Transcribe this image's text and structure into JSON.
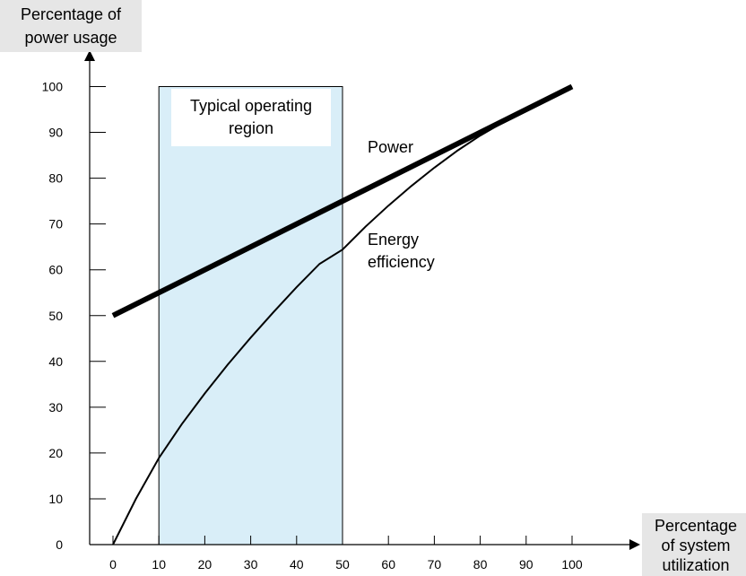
{
  "chart_data": {
    "type": "line",
    "ylabel": [
      "Percentage of",
      "power usage"
    ],
    "xlabel": [
      "Percentage",
      "of system",
      "utilization"
    ],
    "xlim": [
      0,
      100
    ],
    "ylim": [
      0,
      100
    ],
    "xticks": [
      "0",
      "10",
      "20",
      "30",
      "40",
      "50",
      "60",
      "70",
      "80",
      "90",
      "100"
    ],
    "yticks": [
      "0",
      "10",
      "20",
      "30",
      "40",
      "50",
      "60",
      "70",
      "80",
      "90",
      "100"
    ],
    "region": {
      "label": [
        "Typical operating",
        "region"
      ],
      "x_start": 10,
      "x_end": 50,
      "color": "#d9eef8"
    },
    "series": [
      {
        "name": "Power",
        "x": [
          0,
          100
        ],
        "y": [
          50,
          100
        ]
      },
      {
        "name": "Energy efficiency",
        "x": [
          0,
          5,
          10,
          15,
          20,
          25,
          30,
          35,
          40,
          45,
          50,
          55,
          60,
          65,
          70,
          75,
          80,
          85,
          90,
          95,
          100
        ],
        "y": [
          0,
          10,
          18.9,
          26.3,
          33.0,
          39.3,
          45.2,
          50.8,
          56.2,
          61.3,
          64.4,
          69.4,
          74.0,
          78.3,
          82.3,
          86.0,
          89.3,
          92.2,
          94.8,
          97.5,
          100
        ]
      }
    ],
    "series_labels": {
      "power": "Power",
      "energy": [
        "Energy",
        "efficiency"
      ]
    },
    "grid": false,
    "legend": "none"
  }
}
